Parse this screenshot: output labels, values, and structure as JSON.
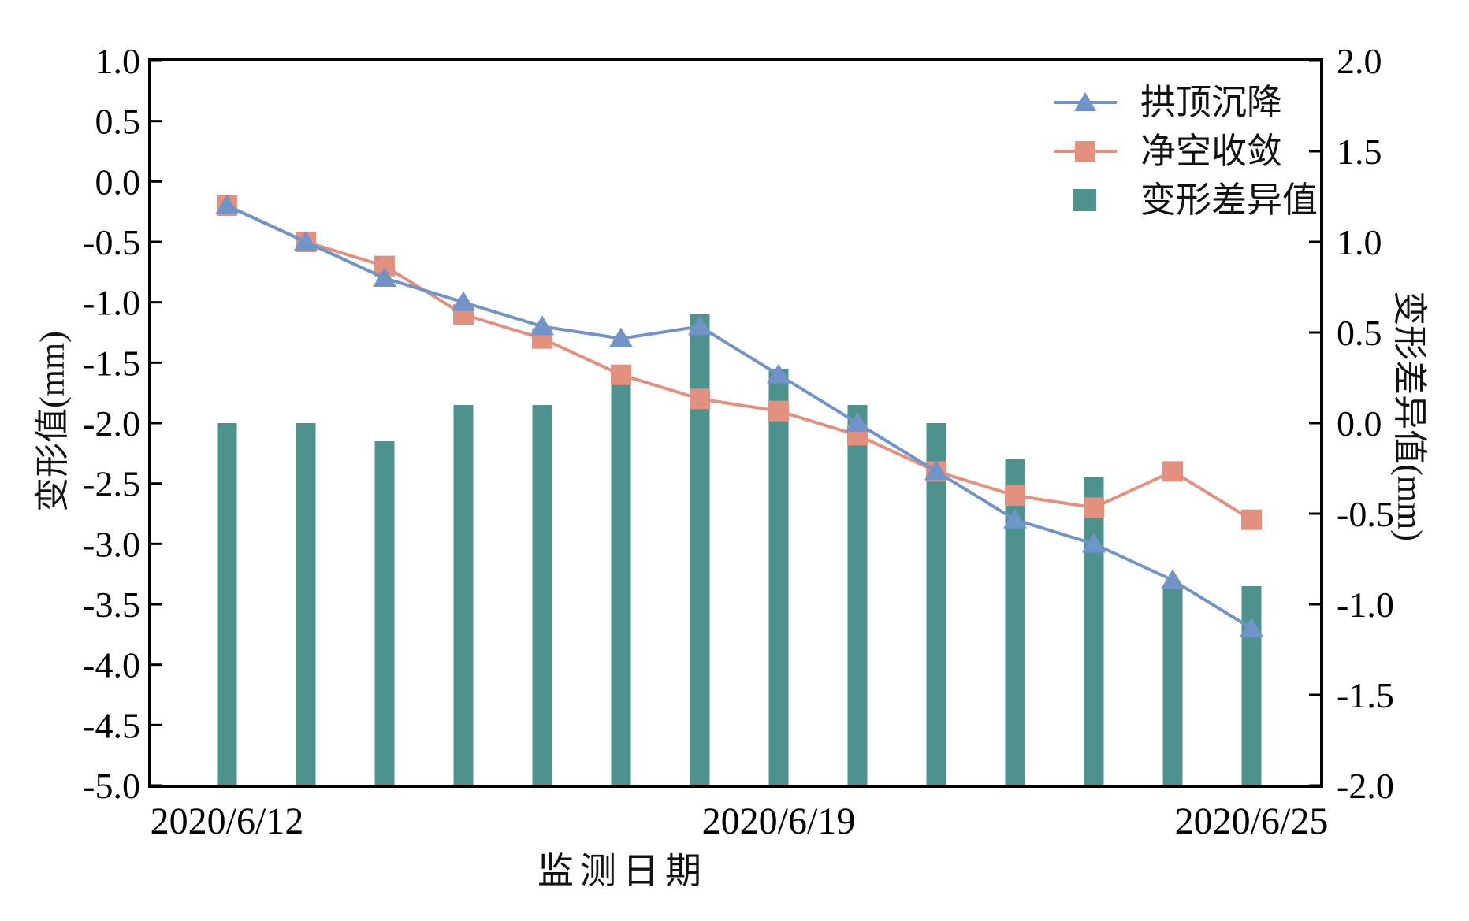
{
  "figure": {
    "xlabel": "监测日期",
    "ylabel_left": "变形值(mm)",
    "ylabel_right": "变形差异值(mm)",
    "background": "#ffffff",
    "frame_color": "#000000"
  },
  "legend": {
    "position": "upper right",
    "items": [
      {
        "label": "拱顶沉降",
        "marker": "triangle-line",
        "color": "#7094c8"
      },
      {
        "label": "净空收敛",
        "marker": "square-line",
        "color": "#e3907f"
      },
      {
        "label": "变形差异值",
        "marker": "bar-swatch",
        "color": "#4d928d"
      }
    ]
  },
  "chart_data": {
    "type": "line+bar combo, dual y-axis",
    "categories": [
      "2020/6/12",
      "2020/6/13",
      "2020/6/14",
      "2020/6/15",
      "2020/6/16",
      "2020/6/17",
      "2020/6/18",
      "2020/6/19",
      "2020/6/20",
      "2020/6/21",
      "2020/6/22",
      "2020/6/23",
      "2020/6/24",
      "2020/6/25"
    ],
    "x_ticks_visible": [
      {
        "index": 0,
        "label": "2020/6/12"
      },
      {
        "index": 7,
        "label": "2020/6/19"
      },
      {
        "index": 13,
        "label": "2020/6/25"
      }
    ],
    "series": [
      {
        "name": "拱顶沉降",
        "type": "line",
        "marker": "triangle",
        "axis": "left",
        "color": "#7094c8",
        "values": [
          -0.2,
          -0.5,
          -0.8,
          -1.0,
          -1.2,
          -1.3,
          -1.2,
          -1.6,
          -2.0,
          -2.4,
          -2.8,
          -3.0,
          -3.3,
          -3.7
        ]
      },
      {
        "name": "净空收敛",
        "type": "line",
        "marker": "square",
        "axis": "left",
        "color": "#e3907f",
        "values": [
          -0.2,
          -0.5,
          -0.7,
          -1.1,
          -1.3,
          -1.6,
          -1.8,
          -1.9,
          -2.1,
          -2.4,
          -2.6,
          -2.7,
          -2.4,
          -2.8
        ]
      },
      {
        "name": "变形差异值",
        "type": "bar",
        "axis": "right",
        "color": "#4d928d",
        "values": [
          0.0,
          0.0,
          -0.1,
          0.1,
          0.1,
          0.3,
          0.6,
          0.3,
          0.1,
          0.0,
          -0.2,
          -0.3,
          -0.9,
          -0.9
        ]
      }
    ],
    "left_axis": {
      "label": "变形值(mm)",
      "min": -5.0,
      "max": 1.0,
      "tick_labels": [
        "1.0",
        "0.5",
        "0.0",
        "-0.5",
        "-1.0",
        "-1.5",
        "-2.0",
        "-2.5",
        "-3.0",
        "-3.5",
        "-4.0",
        "-4.5",
        "-5.0"
      ]
    },
    "right_axis": {
      "label": "变形差异值(mm)",
      "min": -2.0,
      "max": 2.0,
      "tick_labels": [
        "2.0",
        "1.5",
        "1.0",
        "0.5",
        "0.0",
        "-0.5",
        "-1.0",
        "-1.5",
        "-2.0"
      ]
    },
    "xlabel": "监测日期",
    "grid": false,
    "bar_baseline_right_axis": -2.0,
    "tick_direction": "in"
  }
}
